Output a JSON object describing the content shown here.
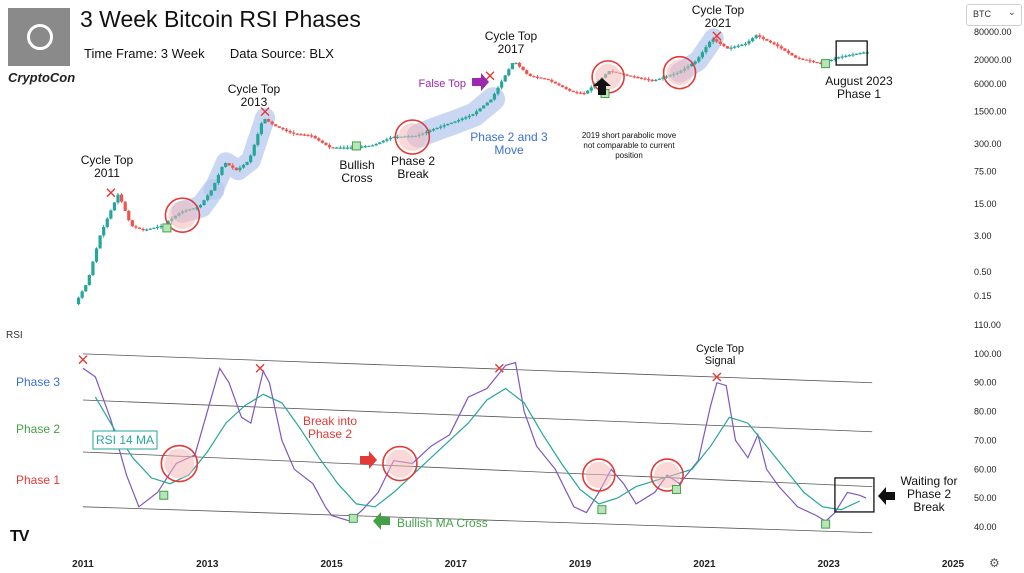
{
  "header": {
    "title": "3 Week Bitcoin RSI Phases",
    "timeframe": "Time Frame: 3 Week",
    "source": "Data Source: BLX",
    "brand": "CryptoCon",
    "symbol_select": "BTC",
    "rsi_label": "RSI"
  },
  "chart_data": [
    {
      "type": "line",
      "name": "price",
      "scale": "log",
      "y_ticks": [
        "80000.00",
        "20000.00",
        "6000.00",
        "1500.00",
        "300.00",
        "75.00",
        "15.00",
        "3.00",
        "0.50",
        "0.15"
      ],
      "x": [
        2010.9,
        2011.1,
        2011.3,
        2011.45,
        2011.6,
        2011.8,
        2012.0,
        2012.3,
        2012.6,
        2012.9,
        2013.1,
        2013.3,
        2013.5,
        2013.7,
        2013.93,
        2014.1,
        2014.4,
        2014.7,
        2015.0,
        2015.4,
        2015.7,
        2016.0,
        2016.4,
        2016.7,
        2017.0,
        2017.3,
        2017.6,
        2017.96,
        2018.2,
        2018.5,
        2018.9,
        2019.1,
        2019.5,
        2019.8,
        2020.2,
        2020.6,
        2020.9,
        2021.15,
        2021.4,
        2021.7,
        2021.86,
        2022.2,
        2022.5,
        2022.9,
        2023.2,
        2023.6
      ],
      "y": [
        0.1,
        0.3,
        3,
        9,
        25,
        5,
        4,
        5,
        10,
        13,
        30,
        120,
        80,
        130,
        1100,
        750,
        500,
        450,
        250,
        250,
        280,
        420,
        450,
        650,
        900,
        1300,
        2800,
        19000,
        9000,
        7500,
        4000,
        3700,
        11500,
        9000,
        7000,
        10500,
        19000,
        58000,
        35000,
        45000,
        68000,
        40000,
        22000,
        16500,
        23000,
        29000
      ]
    },
    {
      "type": "line",
      "name": "rsi",
      "y_ticks": [
        "110.00",
        "100.00",
        "90.00",
        "80.00",
        "70.00",
        "60.00",
        "50.00",
        "40.00"
      ],
      "x_ticks": [
        "2011",
        "2013",
        "2015",
        "2017",
        "2019",
        "2021",
        "2023",
        "2025"
      ],
      "series": [
        {
          "name": "RSI",
          "color": "#7e57c2",
          "x": [
            2011.0,
            2011.2,
            2011.45,
            2011.7,
            2011.9,
            2012.2,
            2012.5,
            2012.8,
            2013.0,
            2013.2,
            2013.35,
            2013.55,
            2013.7,
            2013.9,
            2014.0,
            2014.2,
            2014.4,
            2014.7,
            2014.9,
            2015.0,
            2015.3,
            2015.5,
            2015.75,
            2016.0,
            2016.3,
            2016.6,
            2016.9,
            2017.2,
            2017.5,
            2017.8,
            2017.96,
            2018.1,
            2018.3,
            2018.6,
            2018.9,
            2019.1,
            2019.3,
            2019.5,
            2019.7,
            2019.9,
            2020.2,
            2020.4,
            2020.6,
            2020.9,
            2021.1,
            2021.2,
            2021.35,
            2021.5,
            2021.7,
            2021.86,
            2022.0,
            2022.2,
            2022.5,
            2022.8,
            2022.95,
            2023.1,
            2023.3,
            2023.5,
            2023.6
          ],
          "y": [
            95,
            92,
            77,
            58,
            47,
            52,
            62,
            65,
            80,
            95,
            90,
            78,
            76,
            94,
            90,
            70,
            60,
            55,
            47,
            44,
            42,
            46,
            52,
            63,
            62,
            68,
            72,
            85,
            88,
            96,
            97,
            80,
            68,
            60,
            47,
            45,
            52,
            60,
            55,
            48,
            52,
            58,
            55,
            63,
            82,
            90,
            89,
            70,
            64,
            72,
            60,
            54,
            47,
            44,
            42,
            45,
            52,
            51,
            50
          ]
        },
        {
          "name": "RSI 14 MA",
          "color": "#26a69a",
          "x": [
            2011.2,
            2011.5,
            2011.8,
            2012.1,
            2012.4,
            2012.7,
            2013.0,
            2013.3,
            2013.6,
            2013.9,
            2014.2,
            2014.5,
            2014.8,
            2015.1,
            2015.4,
            2015.7,
            2016.0,
            2016.3,
            2016.6,
            2016.9,
            2017.2,
            2017.5,
            2017.8,
            2018.1,
            2018.4,
            2018.7,
            2019.0,
            2019.3,
            2019.6,
            2019.9,
            2020.2,
            2020.5,
            2020.8,
            2021.1,
            2021.4,
            2021.7,
            2022.0,
            2022.3,
            2022.6,
            2022.9,
            2023.2,
            2023.5
          ],
          "y": [
            85,
            74,
            64,
            57,
            55,
            58,
            66,
            76,
            82,
            86,
            83,
            74,
            64,
            55,
            48,
            47,
            52,
            58,
            64,
            70,
            76,
            84,
            88,
            83,
            72,
            62,
            53,
            48,
            50,
            54,
            56,
            58,
            60,
            68,
            78,
            76,
            68,
            60,
            52,
            47,
            46,
            49
          ]
        }
      ],
      "phase_lines": [
        100,
        90,
        80,
        70,
        60,
        50,
        40
      ]
    }
  ],
  "annotations": {
    "top2011": "Cycle Top\n2011",
    "top2013": "Cycle Top\n2013",
    "top2017": "Cycle Top\n2017",
    "top2021": "Cycle Top\n2021",
    "bullish_cross": "Bullish\nCross",
    "phase2_break": "Phase 2\nBreak",
    "phase23_move": "Phase 2 and 3\nMove",
    "false_top": "False Top",
    "note2019": "2019 short parabolic move\nnot comparable to current\nposition",
    "aug2023": "August 2023\nPhase 1",
    "phase3": "Phase 3",
    "phase2": "Phase 2",
    "phase1": "Phase 1",
    "rsi_ma": "RSI 14 MA",
    "break_phase2": "Break into\nPhase 2",
    "cycle_signal": "Cycle Top\nSignal",
    "bullish_ma_cross": "Bullish MA Cross",
    "waiting": "Waiting for\nPhase 2\nBreak"
  },
  "colors": {
    "rsi": "#7e57c2",
    "ma": "#26a69a",
    "up": "#26a69a",
    "down": "#ef5350",
    "highlight": "#b7c9ef",
    "circle": "#e53935",
    "phase3": "#3b6fd4",
    "phase2": "#43a047",
    "phase1": "#e53935",
    "false_top": "#9c27b0",
    "arrow_red": "#e53935",
    "arrow_green": "#43a047",
    "arrow_black": "#111111"
  }
}
